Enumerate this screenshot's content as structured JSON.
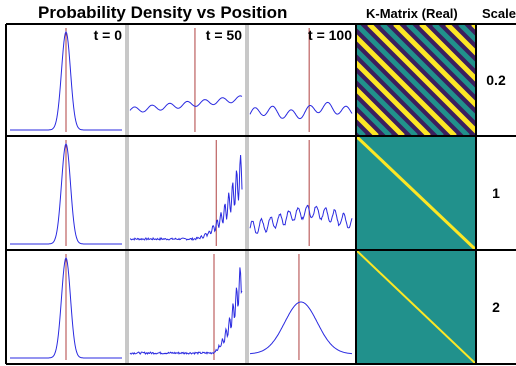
{
  "headers": {
    "density": "Probability Density vs Position",
    "kmatrix": "K-Matrix (Real)",
    "scale": "Scale"
  },
  "time_labels": [
    "t = 0",
    "t = 50",
    "t = 100"
  ],
  "scales": [
    "0.2",
    "1",
    "2"
  ],
  "colors": {
    "density_line": "#2a2ae0",
    "marker_line": "#b04040",
    "panel_bg": "#ffffff",
    "frame": "#000000",
    "cell_divider": "#c8c8c8",
    "viridis_low": "#3b1f5e",
    "viridis_mid": "#21918c",
    "viridis_high": "#fde725"
  },
  "chart_data": [
    {
      "type": "line",
      "scale": "0.2",
      "time": "t = 0",
      "shape": "narrow gaussian peak"
    },
    {
      "type": "line",
      "scale": "0.2",
      "time": "t = 50",
      "shape": "low wavy spread, rising slowly"
    },
    {
      "type": "line",
      "scale": "0.2",
      "time": "t = 100",
      "shape": "low irregular oscillation"
    },
    {
      "type": "heatmap",
      "scale": "0.2",
      "pattern": "dense diagonal stripes"
    },
    {
      "type": "line",
      "scale": "1",
      "time": "t = 0",
      "shape": "narrow gaussian peak"
    },
    {
      "type": "line",
      "scale": "1",
      "time": "t = 50",
      "shape": "noisy ramp to the right"
    },
    {
      "type": "line",
      "scale": "1",
      "time": "t = 100",
      "shape": "broad noisy hump"
    },
    {
      "type": "heatmap",
      "scale": "1",
      "pattern": "single bright diagonal"
    },
    {
      "type": "line",
      "scale": "2",
      "time": "t = 0",
      "shape": "narrow gaussian peak"
    },
    {
      "type": "line",
      "scale": "2",
      "time": "t = 50",
      "shape": "sharp ramp at right edge"
    },
    {
      "type": "line",
      "scale": "2",
      "time": "t = 100",
      "shape": "smooth gaussian hump"
    },
    {
      "type": "heatmap",
      "scale": "2",
      "pattern": "thin bright diagonal"
    }
  ]
}
